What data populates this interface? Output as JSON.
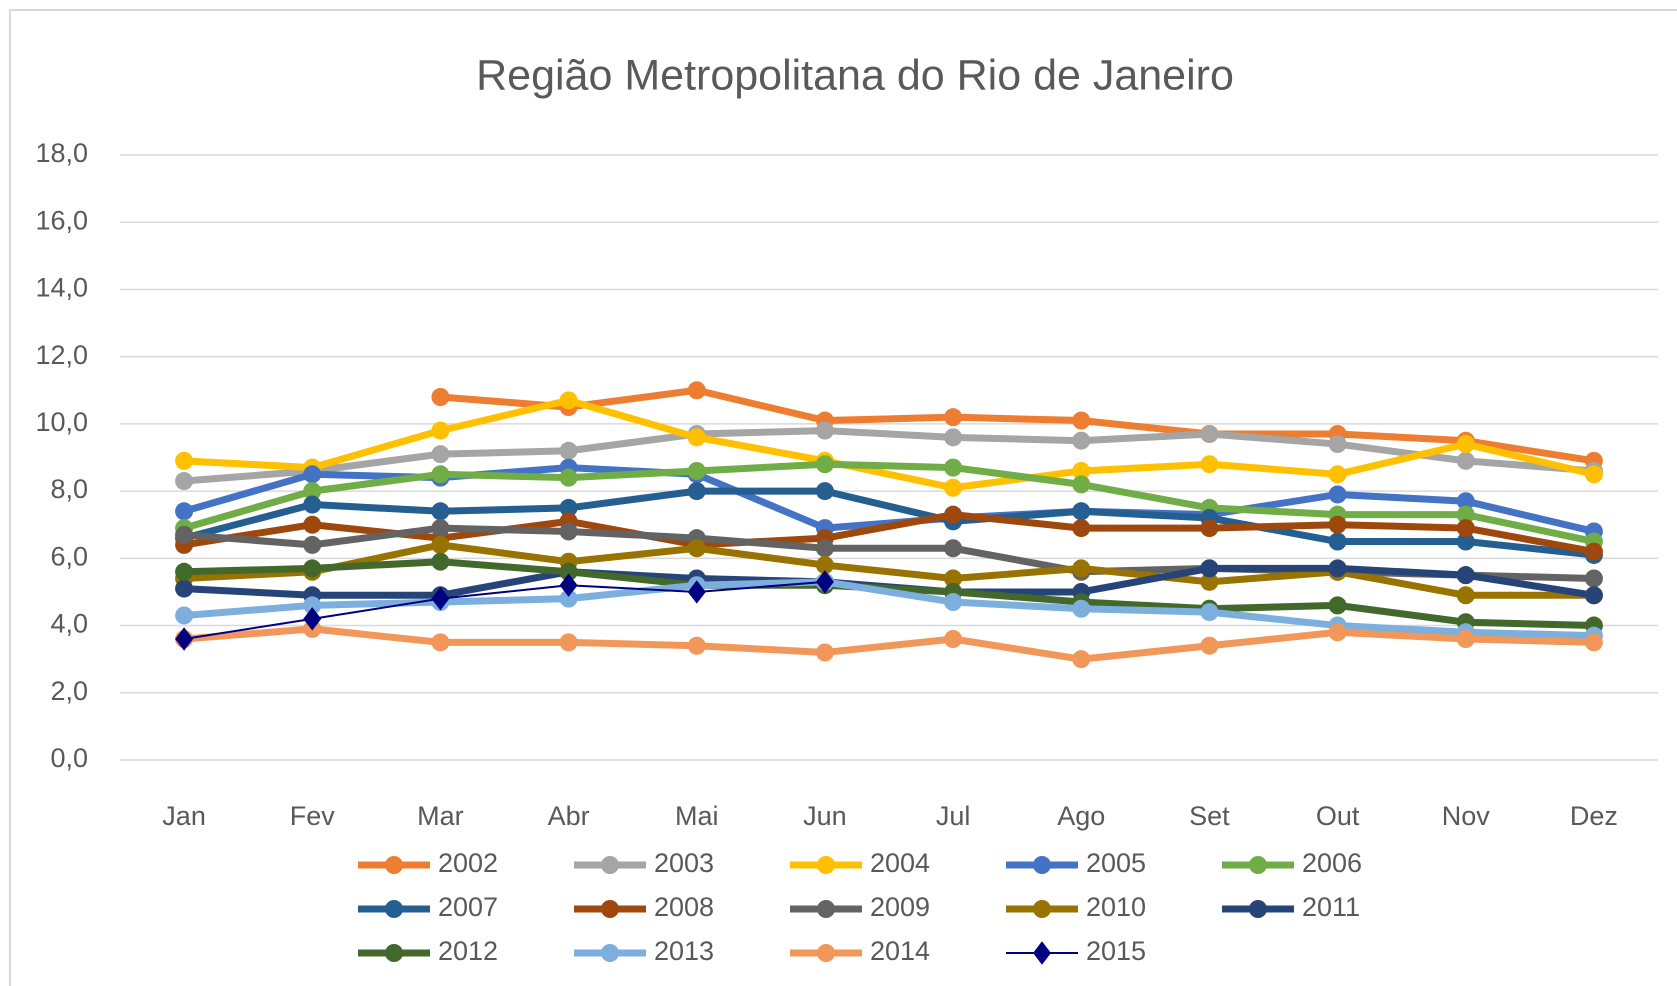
{
  "chart_data": {
    "type": "line",
    "title": "Região Metropolitana do Rio de Janeiro",
    "categories": [
      "Jan",
      "Fev",
      "Mar",
      "Abr",
      "Mai",
      "Jun",
      "Jul",
      "Ago",
      "Set",
      "Out",
      "Nov",
      "Dez"
    ],
    "ylim": [
      0,
      18
    ],
    "yticks": [
      {
        "value": 0,
        "label": "0,0"
      },
      {
        "value": 2,
        "label": "2,0"
      },
      {
        "value": 4,
        "label": "4,0"
      },
      {
        "value": 6,
        "label": "6,0"
      },
      {
        "value": 8,
        "label": "8,0"
      },
      {
        "value": 10,
        "label": "10,0"
      },
      {
        "value": 12,
        "label": "12,0"
      },
      {
        "value": 14,
        "label": "14,0"
      },
      {
        "value": 16,
        "label": "16,0"
      },
      {
        "value": 18,
        "label": "18,0"
      }
    ],
    "grid": true,
    "legend": "bottom",
    "series": [
      {
        "name": "2002",
        "color": "#ed7d31",
        "marker": "circle",
        "values": [
          null,
          null,
          10.8,
          10.5,
          11.0,
          10.1,
          10.2,
          10.1,
          9.7,
          9.7,
          9.5,
          8.9
        ]
      },
      {
        "name": "2003",
        "color": "#a5a5a5",
        "marker": "circle",
        "values": [
          8.3,
          8.6,
          9.1,
          9.2,
          9.7,
          9.8,
          9.6,
          9.5,
          9.7,
          9.4,
          8.9,
          8.6
        ]
      },
      {
        "name": "2004",
        "color": "#ffc000",
        "marker": "circle",
        "values": [
          8.9,
          8.7,
          9.8,
          10.7,
          9.6,
          8.9,
          8.1,
          8.6,
          8.8,
          8.5,
          9.4,
          8.5
        ]
      },
      {
        "name": "2005",
        "color": "#4472c4",
        "marker": "circle",
        "values": [
          7.4,
          8.5,
          8.4,
          8.7,
          8.5,
          6.9,
          7.2,
          7.4,
          7.3,
          7.9,
          7.7,
          6.8
        ]
      },
      {
        "name": "2006",
        "color": "#70ad47",
        "marker": "circle",
        "values": [
          6.9,
          8.0,
          8.5,
          8.4,
          8.6,
          8.8,
          8.7,
          8.2,
          7.5,
          7.3,
          7.3,
          6.5
        ]
      },
      {
        "name": "2007",
        "color": "#255e91",
        "marker": "circle",
        "values": [
          6.6,
          7.6,
          7.4,
          7.5,
          8.0,
          8.0,
          7.1,
          7.4,
          7.2,
          6.5,
          6.5,
          6.1
        ]
      },
      {
        "name": "2008",
        "color": "#9e480e",
        "marker": "circle",
        "values": [
          6.4,
          7.0,
          6.6,
          7.1,
          6.4,
          6.6,
          7.3,
          6.9,
          6.9,
          7.0,
          6.9,
          6.2
        ]
      },
      {
        "name": "2009",
        "color": "#636363",
        "marker": "circle",
        "values": [
          6.7,
          6.4,
          6.9,
          6.8,
          6.6,
          6.3,
          6.3,
          5.6,
          5.7,
          5.6,
          5.5,
          5.4
        ]
      },
      {
        "name": "2010",
        "color": "#997300",
        "marker": "circle",
        "values": [
          5.4,
          5.6,
          6.4,
          5.9,
          6.3,
          5.8,
          5.4,
          5.7,
          5.3,
          5.6,
          4.9,
          4.9
        ]
      },
      {
        "name": "2011",
        "color": "#264478",
        "marker": "circle",
        "values": [
          5.1,
          4.9,
          4.9,
          5.6,
          5.4,
          5.3,
          5.0,
          5.0,
          5.7,
          5.7,
          5.5,
          4.9
        ]
      },
      {
        "name": "2012",
        "color": "#43682b",
        "marker": "circle",
        "values": [
          5.6,
          5.7,
          5.9,
          5.6,
          5.2,
          5.2,
          5.0,
          4.7,
          4.5,
          4.6,
          4.1,
          4.0
        ]
      },
      {
        "name": "2013",
        "color": "#7cafdd",
        "marker": "circle",
        "values": [
          4.3,
          4.6,
          4.7,
          4.8,
          5.2,
          5.3,
          4.7,
          4.5,
          4.4,
          4.0,
          3.8,
          3.7
        ]
      },
      {
        "name": "2014",
        "color": "#f1975a",
        "marker": "circle",
        "values": [
          3.6,
          3.9,
          3.5,
          3.5,
          3.4,
          3.2,
          3.6,
          3.0,
          3.4,
          3.8,
          3.6,
          3.5
        ]
      },
      {
        "name": "2015",
        "color": "#000080",
        "marker": "diamond",
        "values": [
          3.6,
          4.2,
          4.8,
          5.2,
          5.0,
          5.3,
          null,
          null,
          null,
          null,
          null,
          null
        ]
      }
    ]
  }
}
